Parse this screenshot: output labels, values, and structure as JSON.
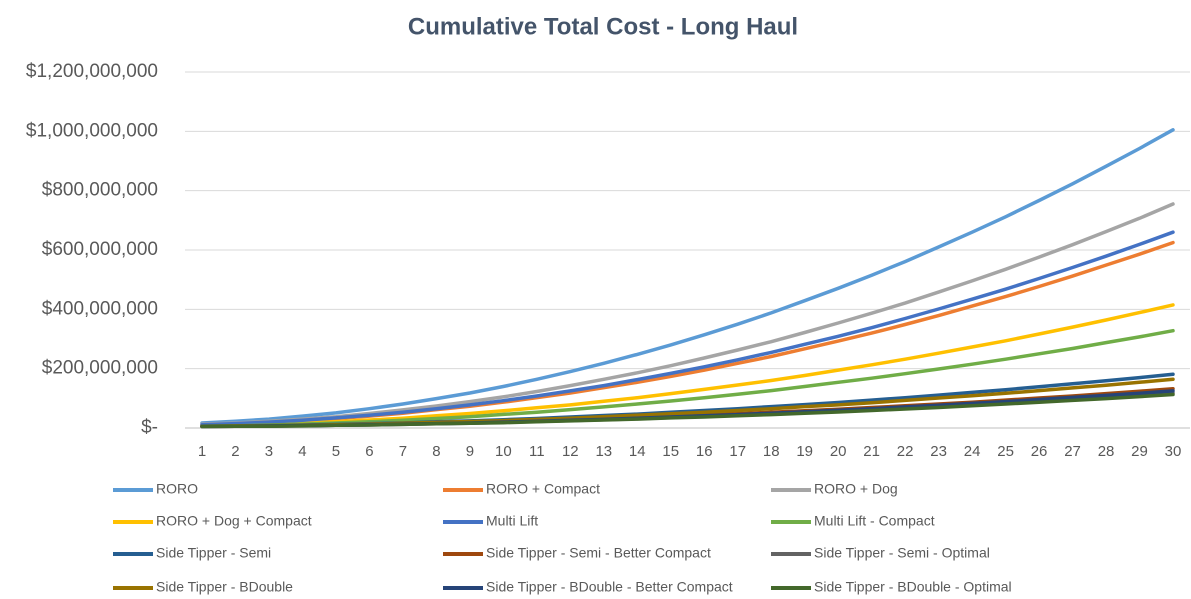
{
  "chart_data": {
    "type": "line",
    "title": "Cumulative Total Cost - Long Haul",
    "categories": [
      "1",
      "2",
      "3",
      "4",
      "5",
      "6",
      "7",
      "8",
      "9",
      "10",
      "11",
      "12",
      "13",
      "14",
      "15",
      "16",
      "17",
      "18",
      "19",
      "20",
      "21",
      "22",
      "23",
      "24",
      "25",
      "26",
      "27",
      "28",
      "29",
      "30"
    ],
    "ylim": [
      0,
      1200000000
    ],
    "yticks": [
      {
        "value": 0,
        "label": "$-"
      },
      {
        "value": 200000000,
        "label": "$200,000,000"
      },
      {
        "value": 400000000,
        "label": "$400,000,000"
      },
      {
        "value": 600000000,
        "label": "$600,000,000"
      },
      {
        "value": 800000000,
        "label": "$800,000,000"
      },
      {
        "value": 1000000000,
        "label": "$1,000,000,000"
      },
      {
        "value": 1200000000,
        "label": "$1,200,000,000"
      }
    ],
    "grid": true,
    "legend": "bottom",
    "series": [
      {
        "name": "RORO",
        "color": "#5b9bd5",
        "values": [
          17000000.0,
          23000000.0,
          30000000.0,
          40000000.0,
          51000000.0,
          65000000.0,
          81000000.0,
          99000000.0,
          118000000.0,
          140000000.0,
          164000000.0,
          190000000.0,
          218000000.0,
          248000000.0,
          280000000.0,
          314000000.0,
          350000000.0,
          388000000.0,
          429000000.0,
          471000000.0,
          515000000.0,
          561000000.0,
          610000000.0,
          660000000.0,
          712000000.0,
          767000000.0,
          823000000.0,
          882000000.0,
          942000000.0,
          1005000000.0
        ]
      },
      {
        "name": "RORO + Compact",
        "color": "#ed7d31",
        "values": [
          11000000.0,
          14000000.0,
          19000000.0,
          25000000.0,
          32000000.0,
          40000000.0,
          50000000.0,
          62000000.0,
          73000000.0,
          87000000.0,
          102000000.0,
          118000000.0,
          136000000.0,
          154000000.0,
          174000000.0,
          195000000.0,
          218000000.0,
          241000000.0,
          267000000.0,
          293000000.0,
          320000000.0,
          349000000.0,
          379000000.0,
          411000000.0,
          443000000.0,
          477000000.0,
          512000000.0,
          549000000.0,
          586000000.0,
          625000000.0
        ]
      },
      {
        "name": "RORO + Dog",
        "color": "#a5a5a5",
        "values": [
          13000000.0,
          17000000.0,
          23000000.0,
          30000000.0,
          38000000.0,
          49000000.0,
          61000000.0,
          74000000.0,
          89000000.0,
          105000000.0,
          123000000.0,
          143000000.0,
          164000000.0,
          186000000.0,
          210000000.0,
          236000000.0,
          263000000.0,
          291000000.0,
          322000000.0,
          354000000.0,
          387000000.0,
          421000000.0,
          458000000.0,
          496000000.0,
          535000000.0,
          576000000.0,
          618000000.0,
          662000000.0,
          707000000.0,
          755000000.0
        ]
      },
      {
        "name": "RORO + Dog + Compact",
        "color": "#ffc000",
        "values": [
          7000000.0,
          9000000.0,
          12000000.0,
          17000000.0,
          21000000.0,
          27000000.0,
          33000000.0,
          41000000.0,
          49000000.0,
          58000000.0,
          68000000.0,
          78000000.0,
          90000000.0,
          102000000.0,
          116000000.0,
          130000000.0,
          145000000.0,
          160000000.0,
          177000000.0,
          195000000.0,
          213000000.0,
          232000000.0,
          252000000.0,
          273000000.0,
          294000000.0,
          317000000.0,
          340000000.0,
          364000000.0,
          389000000.0,
          415000000.0
        ]
      },
      {
        "name": "Multi Lift",
        "color": "#4472c4",
        "values": [
          11000000.0,
          15000000.0,
          20000000.0,
          26000000.0,
          34000000.0,
          43000000.0,
          53000000.0,
          65000000.0,
          78000000.0,
          92000000.0,
          108000000.0,
          125000000.0,
          143000000.0,
          163000000.0,
          184000000.0,
          206000000.0,
          230000000.0,
          255000000.0,
          282000000.0,
          309000000.0,
          338000000.0,
          369000000.0,
          401000000.0,
          434000000.0,
          468000000.0,
          504000000.0,
          541000000.0,
          579000000.0,
          619000000.0,
          660000000.0
        ]
      },
      {
        "name": "Multi Lift - Compact",
        "color": "#70ad47",
        "values": [
          6000000.0,
          7000000.0,
          10000000.0,
          13000000.0,
          17000000.0,
          21000000.0,
          26000000.0,
          32000000.0,
          38000000.0,
          46000000.0,
          53000000.0,
          62000000.0,
          71000000.0,
          81000000.0,
          91000000.0,
          102000000.0,
          114000000.0,
          126000000.0,
          140000000.0,
          154000000.0,
          168000000.0,
          183000000.0,
          199000000.0,
          215000000.0,
          232000000.0,
          250000000.0,
          268000000.0,
          288000000.0,
          307000000.0,
          328000000.0
        ]
      },
      {
        "name": "Side Tipper - Semi",
        "color": "#255e91",
        "values": [
          6000000.0,
          7000000.0,
          8000000.0,
          10000000.0,
          12000000.0,
          15000000.0,
          17000000.0,
          21000000.0,
          24000000.0,
          28000000.0,
          32000000.0,
          37000000.0,
          42000000.0,
          47000000.0,
          53000000.0,
          59000000.0,
          65000000.0,
          72000000.0,
          79000000.0,
          86000000.0,
          94000000.0,
          102000000.0,
          111000000.0,
          120000000.0,
          129000000.0,
          139000000.0,
          149000000.0,
          159000000.0,
          170000000.0,
          181000000.0
        ]
      },
      {
        "name": "Side Tipper - Semi - Better Compact",
        "color": "#9e480e",
        "values": [
          5000000.0,
          6000000.0,
          7000000.0,
          8000000.0,
          10000000.0,
          11000000.0,
          13000000.0,
          16000000.0,
          18000000.0,
          21000000.0,
          24000000.0,
          27000000.0,
          31000000.0,
          35000000.0,
          39000000.0,
          43000000.0,
          48000000.0,
          53000000.0,
          58000000.0,
          63000000.0,
          69000000.0,
          75000000.0,
          81000000.0,
          87000000.0,
          94000000.0,
          101000000.0,
          108000000.0,
          116000000.0,
          124000000.0,
          132000000.0
        ]
      },
      {
        "name": "Side Tipper - Semi - Optimal",
        "color": "#636363",
        "values": [
          5000000.0,
          6000000.0,
          6000000.0,
          8000000.0,
          9000000.0,
          10000000.0,
          12000000.0,
          14000000.0,
          16000000.0,
          19000000.0,
          22000000.0,
          25000000.0,
          28000000.0,
          31000000.0,
          35000000.0,
          39000000.0,
          43000000.0,
          47000000.0,
          52000000.0,
          57000000.0,
          62000000.0,
          67000000.0,
          73000000.0,
          78000000.0,
          84000000.0,
          90000000.0,
          97000000.0,
          104000000.0,
          110000000.0,
          118000000.0
        ]
      },
      {
        "name": "Side Tipper - BDouble",
        "color": "#997300",
        "values": [
          6000000.0,
          7000000.0,
          8000000.0,
          9000000.0,
          11000000.0,
          13000000.0,
          16000000.0,
          19000000.0,
          22000000.0,
          25000000.0,
          29000000.0,
          33000000.0,
          38000000.0,
          43000000.0,
          48000000.0,
          53000000.0,
          59000000.0,
          65000000.0,
          72000000.0,
          78000000.0,
          85000000.0,
          93000000.0,
          101000000.0,
          109000000.0,
          117000000.0,
          126000000.0,
          135000000.0,
          144000000.0,
          154000000.0,
          164000000.0
        ]
      },
      {
        "name": "Side Tipper - BDouble - Better Compact",
        "color": "#264478",
        "values": [
          5000000.0,
          6000000.0,
          7000000.0,
          8000000.0,
          9000000.0,
          11000000.0,
          13000000.0,
          15000000.0,
          17000000.0,
          20000000.0,
          23000000.0,
          26000000.0,
          29000000.0,
          33000000.0,
          37000000.0,
          41000000.0,
          45000000.0,
          50000000.0,
          55000000.0,
          60000000.0,
          65000000.0,
          71000000.0,
          77000000.0,
          83000000.0,
          89000000.0,
          96000000.0,
          103000000.0,
          110000000.0,
          117000000.0,
          125000000.0
        ]
      },
      {
        "name": "Side Tipper - BDouble - Optimal",
        "color": "#43682b",
        "values": [
          5000000.0,
          6000000.0,
          6000000.0,
          7000000.0,
          9000000.0,
          10000000.0,
          12000000.0,
          14000000.0,
          16000000.0,
          18000000.0,
          21000000.0,
          24000000.0,
          27000000.0,
          30000000.0,
          34000000.0,
          37000000.0,
          41000000.0,
          45000000.0,
          50000000.0,
          54000000.0,
          59000000.0,
          64000000.0,
          69000000.0,
          75000000.0,
          81000000.0,
          87000000.0,
          93000000.0,
          99000000.0,
          106000000.0,
          113000000.0
        ]
      }
    ]
  }
}
